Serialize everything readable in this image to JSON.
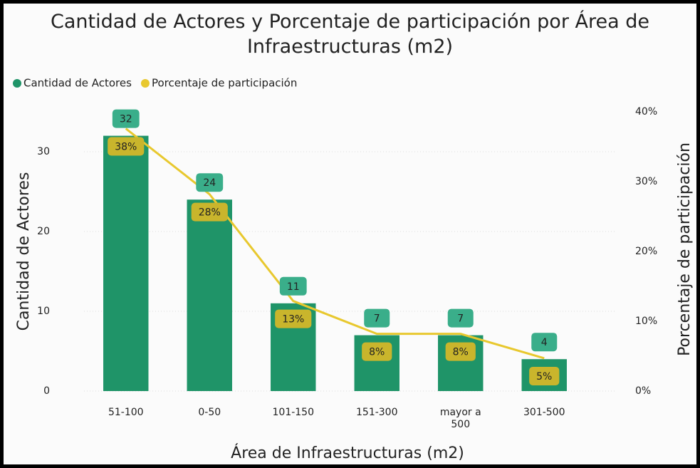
{
  "chart_data": {
    "type": "bar",
    "title": "Cantidad de Actores y Porcentaje de participación por Área de Infraestructuras (m2)",
    "x_label": "Área de Infraestructuras (m2)",
    "y_label": "Cantidad de Actores",
    "y2_label": "Porcentaje de participación",
    "categories": [
      "51-100",
      "0-50",
      "101-150",
      "151-300",
      "mayor a 500",
      "301-500"
    ],
    "series": [
      {
        "name": "Cantidad de Actores",
        "type": "bar",
        "color": "#1f9468",
        "label_color": "#3aae8a",
        "values": [
          32,
          24,
          11,
          7,
          7,
          4
        ]
      },
      {
        "name": "Porcentaje de participación",
        "type": "line",
        "axis": "y2",
        "color": "#e8c82e",
        "label_color": "#c9b52c",
        "values": [
          37.6,
          28.2,
          12.9,
          8.2,
          8.2,
          4.7
        ],
        "value_labels": [
          "38%",
          "28%",
          "13%",
          "8%",
          "8%",
          "5%"
        ]
      }
    ],
    "ylim": [
      0,
      35
    ],
    "yticks": [
      0,
      10,
      20,
      30
    ],
    "y2lim": [
      0,
      40
    ],
    "y2ticks": [
      {
        "value": 0,
        "label": "0%"
      },
      {
        "value": 10,
        "label": "10%"
      },
      {
        "value": 20,
        "label": "20%"
      },
      {
        "value": 30,
        "label": "30%"
      },
      {
        "value": 40,
        "label": "40%"
      }
    ],
    "grid": true,
    "legend": "top-left"
  }
}
